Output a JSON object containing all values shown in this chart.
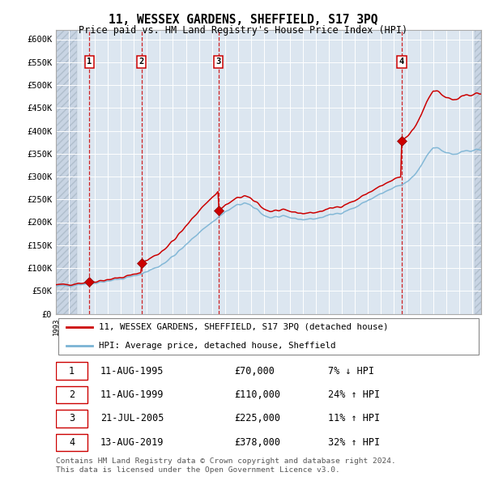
{
  "title": "11, WESSEX GARDENS, SHEFFIELD, S17 3PQ",
  "subtitle": "Price paid vs. HM Land Registry's House Price Index (HPI)",
  "sales": [
    {
      "date": "1995-08-11",
      "price": 70000,
      "label": "1",
      "note": "7% ↓ HPI"
    },
    {
      "date": "1999-08-11",
      "price": 110000,
      "label": "2",
      "note": "24% ↑ HPI"
    },
    {
      "date": "2005-07-21",
      "price": 225000,
      "label": "3",
      "note": "11% ↑ HPI"
    },
    {
      "date": "2019-08-13",
      "price": 378000,
      "label": "4",
      "note": "32% ↑ HPI"
    }
  ],
  "legend_line1": "11, WESSEX GARDENS, SHEFFIELD, S17 3PQ (detached house)",
  "legend_line2": "HPI: Average price, detached house, Sheffield",
  "footer": "Contains HM Land Registry data © Crown copyright and database right 2024.\nThis data is licensed under the Open Government Licence v3.0.",
  "table_rows": [
    [
      "1",
      "11-AUG-1995",
      "£70,000",
      "7% ↓ HPI"
    ],
    [
      "2",
      "11-AUG-1999",
      "£110,000",
      "24% ↑ HPI"
    ],
    [
      "3",
      "21-JUL-2005",
      "£225,000",
      "11% ↑ HPI"
    ],
    [
      "4",
      "13-AUG-2019",
      "£378,000",
      "32% ↑ HPI"
    ]
  ],
  "hpi_color": "#7ab3d4",
  "price_color": "#cc0000",
  "sale_marker_color": "#cc0000",
  "dashed_line_color": "#cc0000",
  "plot_bg_color": "#dce6f0",
  "grid_color": "#ffffff",
  "ylim": [
    0,
    620000
  ],
  "yticks": [
    0,
    50000,
    100000,
    150000,
    200000,
    250000,
    300000,
    350000,
    400000,
    450000,
    500000,
    550000,
    600000
  ],
  "xlim_start": 1993.0,
  "xlim_end": 2025.7,
  "hpi_keypoints_x": [
    1993,
    1994,
    1995,
    1996,
    1997,
    1998,
    1999,
    2000,
    2001,
    2002,
    2003,
    2004,
    2005,
    2006,
    2007,
    2007.5,
    2008,
    2008.5,
    2009,
    2009.5,
    2010,
    2011,
    2012,
    2013,
    2014,
    2015,
    2016,
    2017,
    2018,
    2019,
    2019.5,
    2020,
    2020.5,
    2021,
    2021.5,
    2022,
    2022.5,
    2023,
    2023.5,
    2024,
    2024.5,
    2025
  ],
  "hpi_keypoints_y": [
    60000,
    62000,
    65000,
    68000,
    72000,
    76000,
    82000,
    92000,
    105000,
    125000,
    150000,
    178000,
    200000,
    222000,
    238000,
    242000,
    235000,
    228000,
    215000,
    210000,
    212000,
    210000,
    206000,
    208000,
    215000,
    222000,
    232000,
    248000,
    262000,
    275000,
    280000,
    288000,
    300000,
    320000,
    345000,
    365000,
    360000,
    352000,
    348000,
    350000,
    355000,
    358000
  ]
}
